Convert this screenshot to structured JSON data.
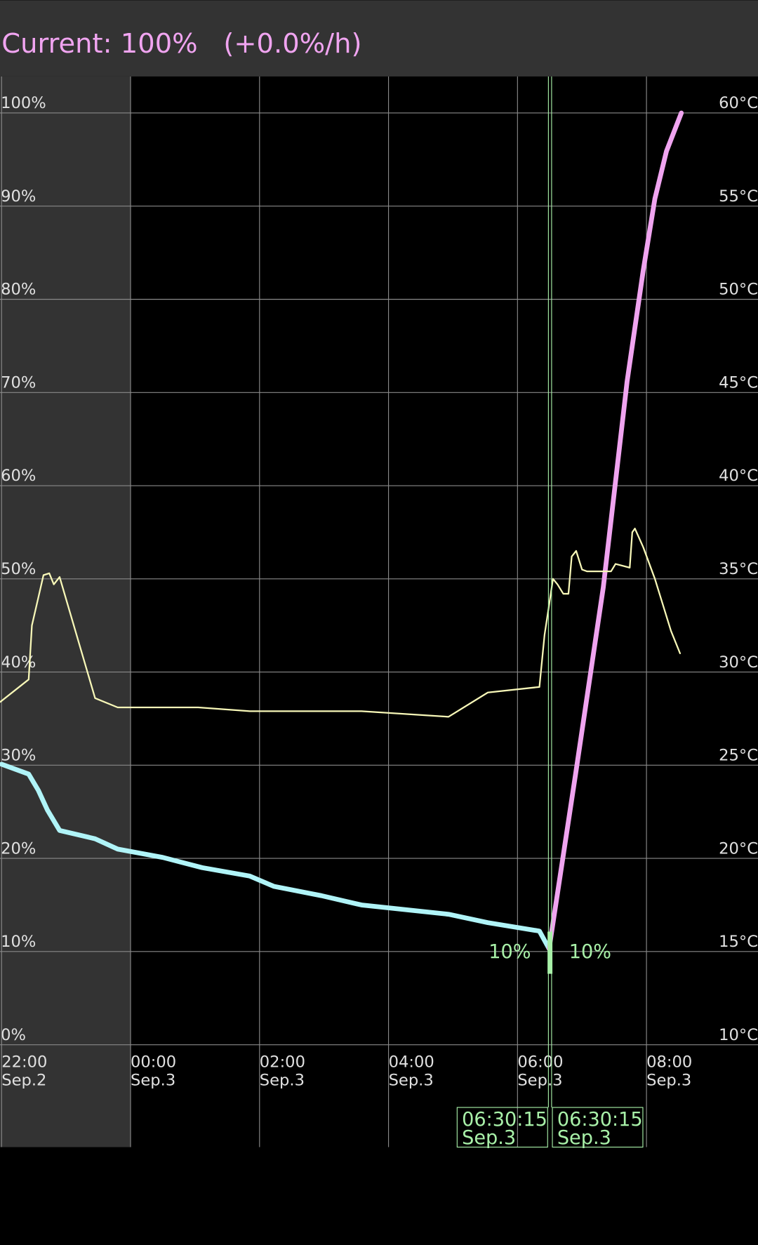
{
  "header": {
    "text": "Current: 100%   (+0.0%/h)"
  },
  "chart_data": {
    "type": "line",
    "xlim": [
      22,
      33.73
    ],
    "xticks": [
      {
        "value": 22,
        "label": "22:00",
        "sub": "Sep.2"
      },
      {
        "value": 24,
        "label": "00:00",
        "sub": "Sep.3"
      },
      {
        "value": 26,
        "label": "02:00",
        "sub": "Sep.3"
      },
      {
        "value": 28,
        "label": "04:00",
        "sub": "Sep.3"
      },
      {
        "value": 30,
        "label": "06:00",
        "sub": "Sep.3"
      },
      {
        "value": 32,
        "label": "08:00",
        "sub": "Sep.3"
      }
    ],
    "ylim": [
      0,
      100
    ],
    "yticks": [
      {
        "value": 0,
        "label": "0%"
      },
      {
        "value": 10,
        "label": "10%"
      },
      {
        "value": 20,
        "label": "20%"
      },
      {
        "value": 30,
        "label": "30%"
      },
      {
        "value": 40,
        "label": "40%"
      },
      {
        "value": 50,
        "label": "50%"
      },
      {
        "value": 60,
        "label": "60%"
      },
      {
        "value": 70,
        "label": "70%"
      },
      {
        "value": 80,
        "label": "80%"
      },
      {
        "value": 90,
        "label": "90%"
      },
      {
        "value": 100,
        "label": "100%"
      }
    ],
    "y2lim": [
      10,
      60
    ],
    "y2ticks": [
      {
        "value": 10,
        "label": "10°C"
      },
      {
        "value": 15,
        "label": "15°C"
      },
      {
        "value": 20,
        "label": "20°C"
      },
      {
        "value": 25,
        "label": "25°C"
      },
      {
        "value": 30,
        "label": "30°C"
      },
      {
        "value": 35,
        "label": "35°C"
      },
      {
        "value": 40,
        "label": "40°C"
      },
      {
        "value": 45,
        "label": "45°C"
      },
      {
        "value": 50,
        "label": "50°C"
      },
      {
        "value": 55,
        "label": "55°C"
      },
      {
        "value": 60,
        "label": "60°C"
      }
    ],
    "grid": true,
    "series": [
      {
        "color": "#b0f4f8",
        "width": 6,
        "x": [
          22.0,
          22.42,
          22.57,
          22.71,
          22.9,
          23.45,
          23.8,
          24.5,
          25.11,
          25.85,
          26.22,
          26.96,
          27.58,
          28.93,
          29.54,
          30.34,
          30.49
        ],
        "values": [
          30.1,
          29.05,
          27.3,
          25.2,
          23.0,
          22.1,
          21.0,
          20.1,
          19.0,
          18.1,
          17.0,
          16.0,
          15.0,
          14.0,
          13.1,
          12.2,
          10.3
        ]
      },
      {
        "color": "#f0a4f0",
        "width": 6,
        "x": [
          30.49,
          30.9,
          31.33,
          31.7,
          31.95,
          32.13,
          32.31,
          32.54
        ],
        "values": [
          10.3,
          29.0,
          49.1,
          71.2,
          83.1,
          90.8,
          95.9,
          100
        ]
      },
      {
        "color": "#f8f8b8",
        "width": 2,
        "axis": "y2",
        "x": [
          21.98,
          22.42,
          22.47,
          22.65,
          22.74,
          22.81,
          22.9,
          23.45,
          23.8,
          25.05,
          25.85,
          27.58,
          28.93,
          29.54,
          30.34,
          30.42,
          30.49,
          30.55,
          30.62,
          30.71,
          30.79,
          30.84,
          30.91,
          31.0,
          31.08,
          31.45,
          31.52,
          31.74,
          31.78,
          31.82,
          31.95,
          32.13,
          32.38,
          32.52
        ],
        "values": [
          28.4,
          29.6,
          32.5,
          35.2,
          35.3,
          34.7,
          35.1,
          28.6,
          28.1,
          28.1,
          27.9,
          27.9,
          27.6,
          28.9,
          29.2,
          32.0,
          33.6,
          35.0,
          34.7,
          34.2,
          34.2,
          36.2,
          36.5,
          35.5,
          35.4,
          35.4,
          35.8,
          35.6,
          37.5,
          37.7,
          36.7,
          35.0,
          32.2,
          31.0
        ]
      }
    ],
    "markers": [
      {
        "x": 30.504,
        "value": 10,
        "value_label": "10%",
        "time": "06:30:15",
        "date": "Sep.3"
      },
      {
        "x": 30.504,
        "value": 10,
        "value_label": "10%",
        "time": "06:30:15",
        "date": "Sep.3"
      }
    ]
  }
}
